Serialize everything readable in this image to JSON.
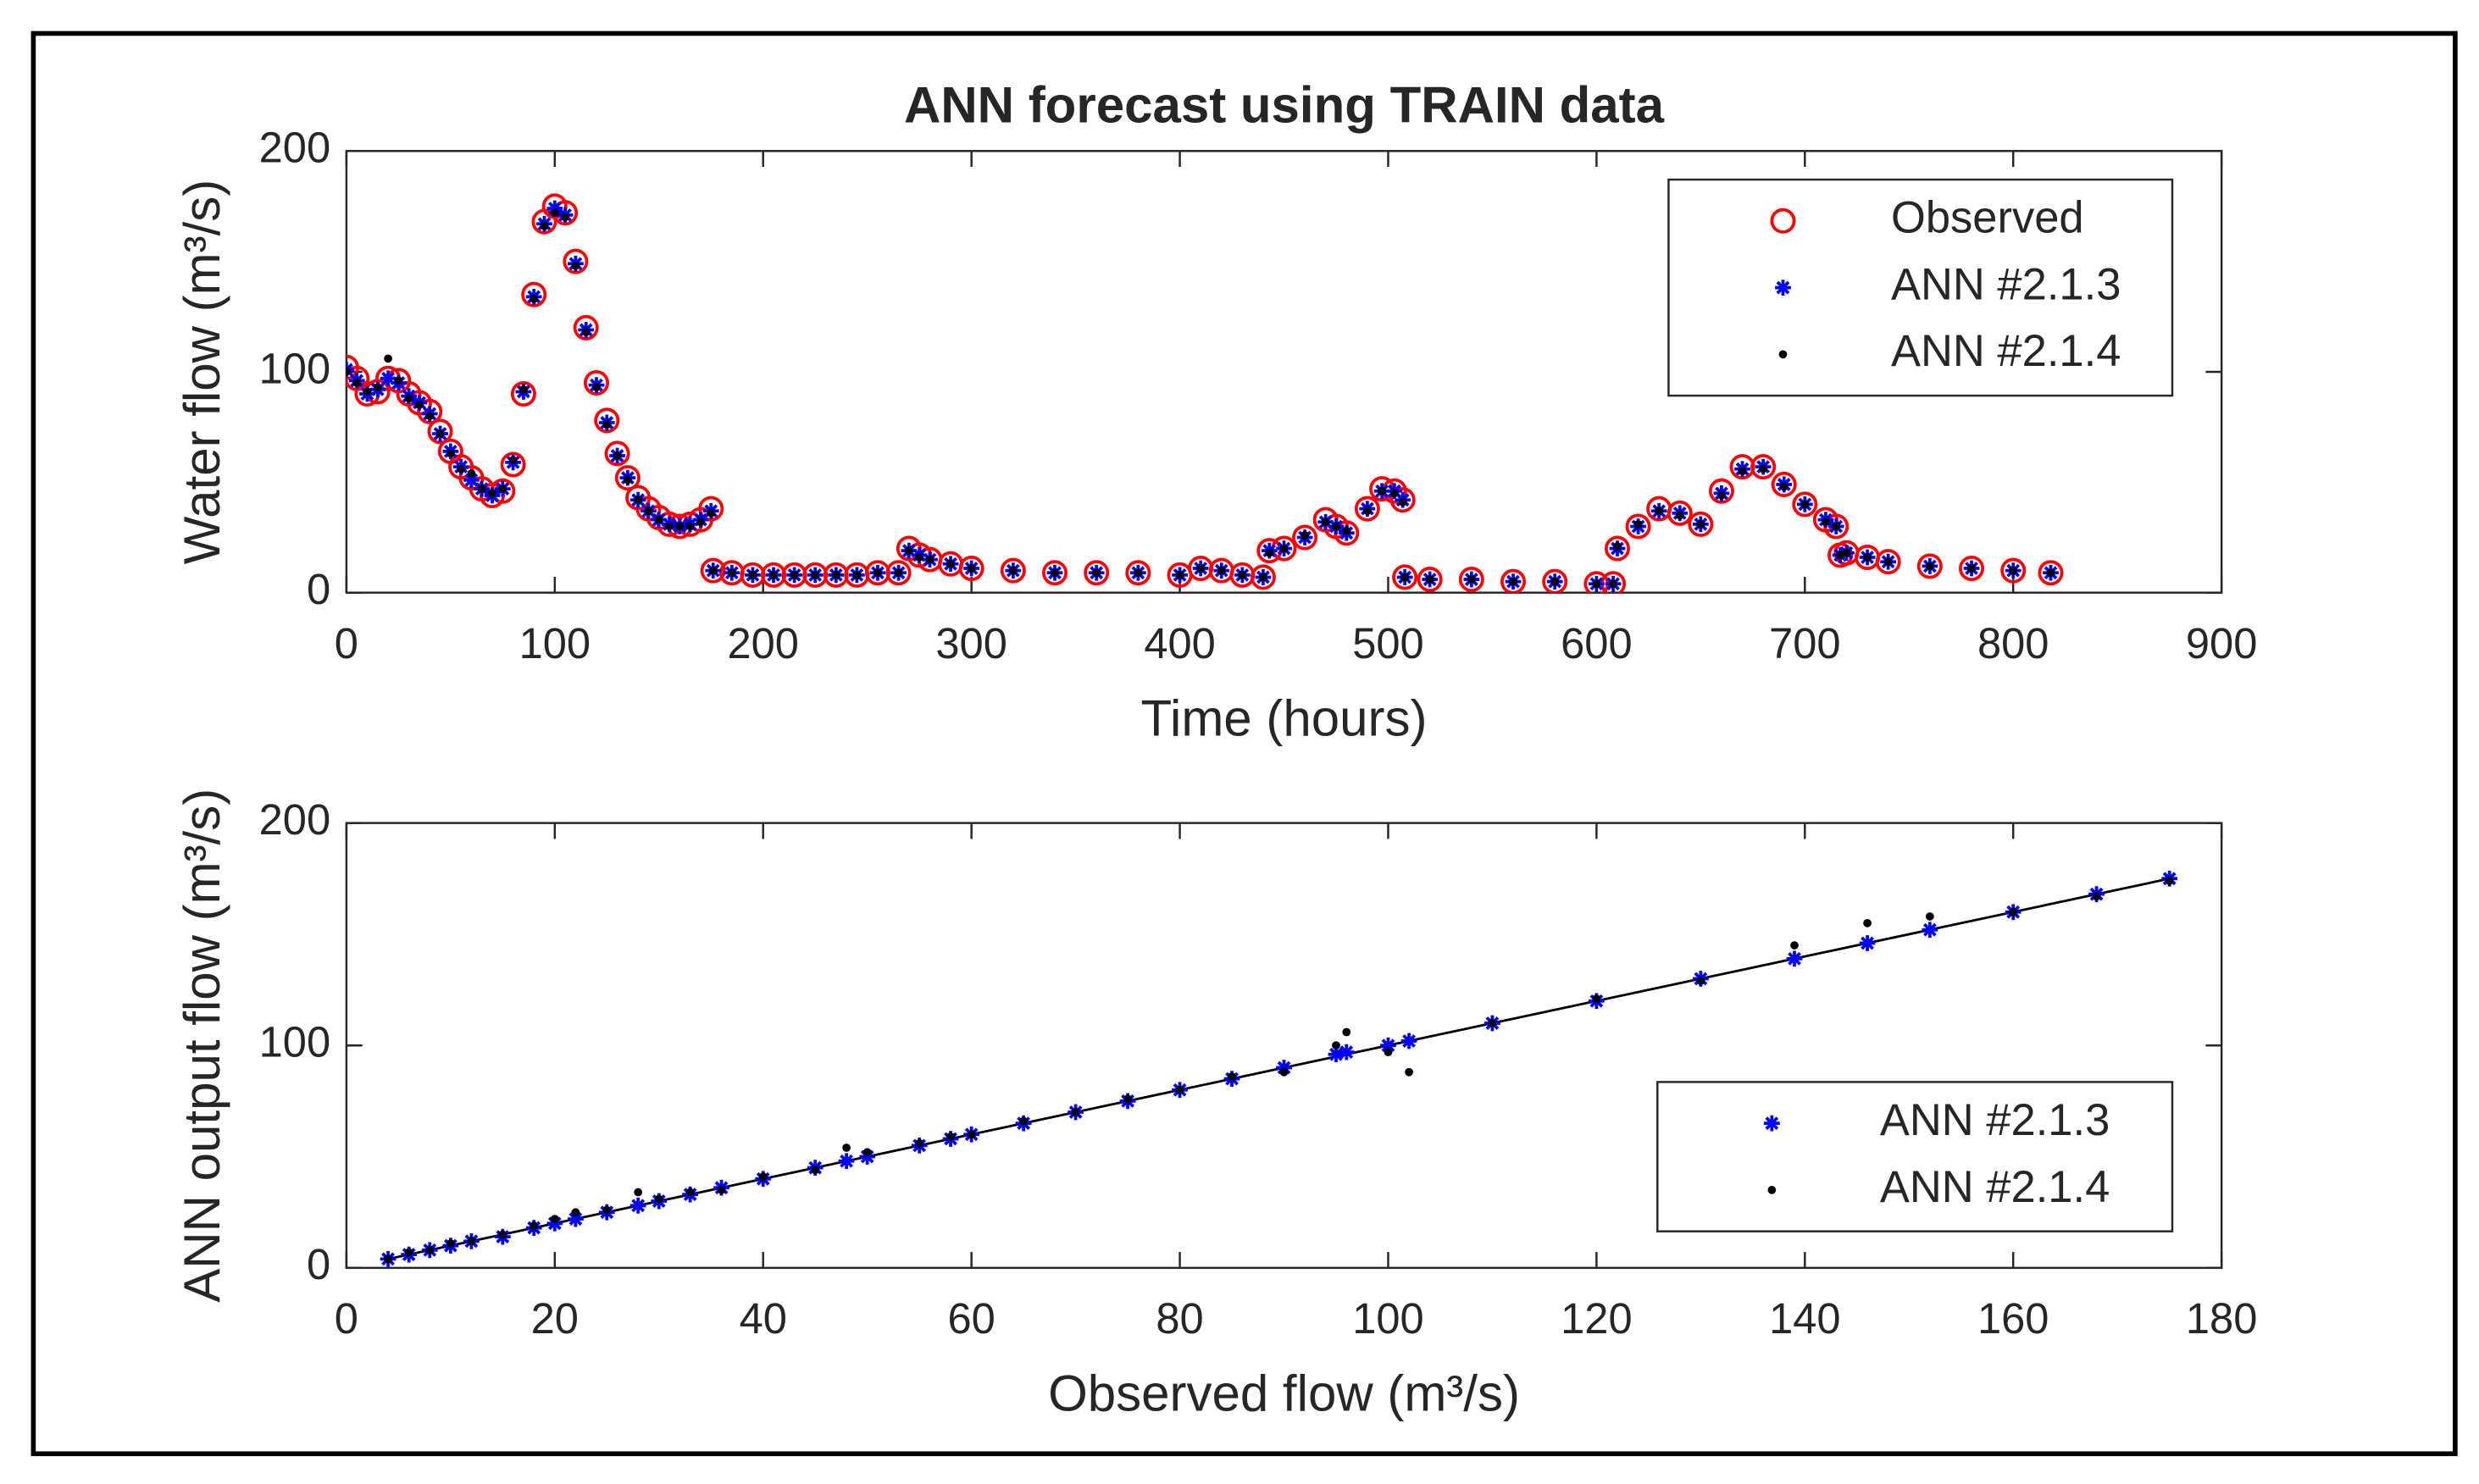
{
  "chart_data": [
    {
      "type": "scatter",
      "title": "ANN forecast using TRAIN data",
      "xlabel": "Time (hours)",
      "ylabel": "Water flow (m³/s)",
      "x": [
        0,
        5,
        10,
        15,
        20,
        25,
        30,
        35,
        40,
        45,
        50,
        55,
        60,
        65,
        70,
        75,
        80,
        85,
        90,
        95,
        100,
        105,
        110,
        115,
        120,
        125,
        130,
        135,
        140,
        145,
        150,
        155,
        160,
        165,
        170,
        175,
        176,
        185,
        195,
        205,
        215,
        225,
        235,
        245,
        255,
        265,
        270,
        275,
        280,
        290,
        300,
        320,
        340,
        360,
        380,
        400,
        410,
        420,
        430,
        440,
        443,
        450,
        460,
        470,
        475,
        480,
        490,
        497,
        503,
        507,
        508,
        520,
        540,
        560,
        580,
        600,
        608,
        610,
        620,
        630,
        640,
        650,
        660,
        670,
        680,
        690,
        700,
        710,
        715,
        717,
        720,
        730,
        740,
        760,
        780,
        800,
        818
      ],
      "series": [
        {
          "name": "Observed",
          "color": "#ff0000",
          "marker": "o",
          "values": [
            102,
            97,
            90,
            91,
            97,
            96,
            90,
            86,
            82,
            73,
            64,
            57,
            52,
            47,
            44,
            46,
            58,
            90,
            135,
            168,
            175,
            172,
            150,
            120,
            95,
            78,
            63,
            52,
            43,
            38,
            34,
            31,
            30,
            31,
            33,
            38,
            10,
            9,
            8,
            8,
            8,
            8,
            8,
            8,
            9,
            9,
            20,
            17,
            15,
            13,
            11,
            10,
            9,
            9,
            9,
            8,
            11,
            10,
            8,
            7,
            19,
            20,
            25,
            33,
            30,
            27,
            38,
            47,
            46,
            42,
            7,
            6,
            6,
            5,
            5,
            4,
            4,
            20,
            30,
            38,
            36,
            31,
            46,
            57,
            57,
            49,
            40,
            33,
            30,
            17,
            18,
            16,
            14,
            12,
            11,
            10,
            9
          ]
        },
        {
          "name": "ANN #2.1.3",
          "color": "#0000ff",
          "marker": "*",
          "values": [
            101,
            96,
            90,
            92,
            97,
            95,
            89,
            86,
            81,
            72,
            64,
            57,
            51,
            47,
            44,
            47,
            59,
            91,
            134,
            167,
            174,
            171,
            149,
            119,
            94,
            77,
            62,
            52,
            42,
            37,
            33,
            31,
            30,
            31,
            33,
            37,
            10,
            9,
            8,
            8,
            8,
            8,
            8,
            8,
            9,
            9,
            19,
            17,
            15,
            13,
            11,
            10,
            9,
            9,
            9,
            8,
            11,
            10,
            8,
            7,
            19,
            20,
            25,
            32,
            30,
            27,
            38,
            46,
            46,
            42,
            7,
            6,
            6,
            5,
            5,
            4,
            4,
            20,
            30,
            37,
            36,
            31,
            45,
            56,
            57,
            49,
            40,
            33,
            30,
            17,
            18,
            16,
            14,
            12,
            11,
            10,
            9
          ]
        },
        {
          "name": "ANN #2.1.4",
          "color": "#000000",
          "marker": ".",
          "values": [
            100,
            95,
            91,
            93,
            106,
            96,
            88,
            85,
            80,
            72,
            63,
            56,
            54,
            47,
            45,
            47,
            60,
            92,
            133,
            166,
            172,
            170,
            148,
            118,
            93,
            76,
            62,
            51,
            42,
            37,
            33,
            30,
            30,
            30,
            32,
            36,
            10,
            9,
            8,
            8,
            8,
            8,
            8,
            8,
            9,
            9,
            19,
            16,
            15,
            13,
            11,
            10,
            9,
            9,
            9,
            8,
            11,
            10,
            8,
            7,
            18,
            20,
            26,
            32,
            30,
            28,
            37,
            46,
            45,
            41,
            7,
            6,
            6,
            5,
            5,
            4,
            4,
            21,
            31,
            37,
            35,
            31,
            44,
            55,
            56,
            48,
            40,
            32,
            30,
            17,
            18,
            16,
            14,
            12,
            11,
            10,
            9
          ]
        }
      ],
      "xlim": [
        0,
        900
      ],
      "xticks": [
        0,
        100,
        200,
        300,
        400,
        500,
        600,
        700,
        800,
        900
      ],
      "ylim": [
        0,
        200
      ],
      "yticks": [
        0,
        100,
        200
      ],
      "legend": "northeast"
    },
    {
      "type": "scatter",
      "xlabel": "Observed flow (m³/s)",
      "ylabel": "ANN output flow (m³/s)",
      "x": [
        4,
        6,
        8,
        10,
        12,
        15,
        18,
        20,
        22,
        25,
        28,
        30,
        33,
        36,
        40,
        45,
        48,
        50,
        55,
        58,
        60,
        65,
        70,
        75,
        80,
        85,
        90,
        95,
        96,
        100,
        102,
        110,
        120,
        130,
        139,
        146,
        152,
        160,
        168,
        175
      ],
      "series": [
        {
          "name": "ANN #2.1.3",
          "color": "#0000ff",
          "marker": "*",
          "values": [
            4,
            6,
            8,
            10,
            12,
            14,
            18,
            20,
            22,
            25,
            28,
            30,
            33,
            36,
            40,
            45,
            48,
            50,
            55,
            58,
            60,
            65,
            70,
            75,
            80,
            85,
            90,
            96,
            97,
            100,
            102,
            110,
            120,
            130,
            139,
            146,
            152,
            160,
            168,
            175
          ]
        },
        {
          "name": "ANN #2.1.4",
          "color": "#000000",
          "marker": ".",
          "values": [
            4,
            7,
            8,
            11,
            12,
            15,
            19,
            22,
            25,
            26,
            34,
            31,
            34,
            35,
            41,
            44,
            54,
            52,
            56,
            59,
            60,
            66,
            70,
            76,
            80,
            86,
            88,
            100,
            106,
            97,
            88,
            110,
            121,
            129,
            145,
            155,
            158,
            160,
            167,
            174
          ]
        }
      ],
      "xlim": [
        0,
        180
      ],
      "xticks": [
        0,
        20,
        40,
        60,
        80,
        100,
        120,
        140,
        160,
        180
      ],
      "ylim": [
        0,
        200
      ],
      "yticks": [
        0,
        100,
        200
      ],
      "legend": "southeast"
    }
  ]
}
